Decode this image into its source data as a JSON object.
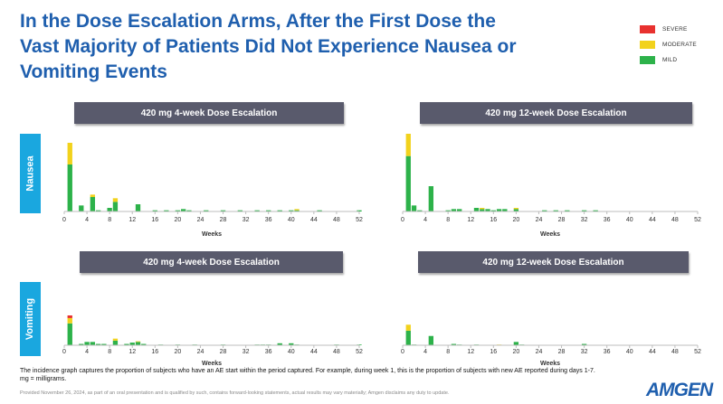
{
  "title": "In the Dose Escalation Arms, After the First Dose the Vast Majority of Patients Did Not Experience Nausea or Vomiting Events",
  "colors": {
    "severe": "#e8312f",
    "moderate": "#f2d21c",
    "mild": "#2db24a",
    "header": "#595a6c",
    "row_label": "#1aa7df",
    "title": "#1f5fae"
  },
  "legend": [
    {
      "key": "severe",
      "label": "SEVERE"
    },
    {
      "key": "moderate",
      "label": "MODERATE"
    },
    {
      "key": "mild",
      "label": "MILD"
    }
  ],
  "rows": [
    {
      "label": "Nausea"
    },
    {
      "label": "Vomiting"
    }
  ],
  "panels": [
    {
      "header": "420 mg 4-week Dose Escalation"
    },
    {
      "header": "420 mg 12-week Dose Escalation"
    },
    {
      "header": "420 mg 4-week Dose Escalation"
    },
    {
      "header": "420 mg 12-week Dose Escalation"
    }
  ],
  "chart_data": [
    {
      "type": "bar",
      "stacked": true,
      "title": "420 mg 4-week Dose Escalation",
      "row": "Nausea",
      "xlabel": "Weeks",
      "xlim": [
        0,
        52
      ],
      "x_ticks": [
        0,
        4,
        8,
        12,
        16,
        20,
        24,
        28,
        32,
        36,
        40,
        44,
        48,
        52
      ],
      "series": [
        {
          "name": "MILD",
          "points": [
            [
              1,
              0.39
            ],
            [
              3,
              0.05
            ],
            [
              5,
              0.12
            ],
            [
              6,
              0.01
            ],
            [
              8,
              0.03
            ],
            [
              9,
              0.08
            ],
            [
              13,
              0.06
            ],
            [
              16,
              0.01
            ],
            [
              18,
              0.01
            ],
            [
              20,
              0.01
            ],
            [
              21,
              0.02
            ],
            [
              22,
              0.01
            ],
            [
              25,
              0.01
            ],
            [
              28,
              0.01
            ],
            [
              31,
              0.01
            ],
            [
              34,
              0.01
            ],
            [
              36,
              0.01
            ],
            [
              38,
              0.01
            ],
            [
              40,
              0.01
            ],
            [
              41,
              0.01
            ],
            [
              45,
              0.01
            ],
            [
              52,
              0.01
            ]
          ]
        },
        {
          "name": "MODERATE",
          "points": [
            [
              1,
              0.18
            ],
            [
              5,
              0.02
            ],
            [
              9,
              0.03
            ],
            [
              41,
              0.01
            ]
          ]
        },
        {
          "name": "SEVERE",
          "points": []
        }
      ]
    },
    {
      "type": "bar",
      "stacked": true,
      "title": "420 mg 12-week Dose Escalation",
      "row": "Nausea",
      "xlabel": "Weeks",
      "xlim": [
        0,
        52
      ],
      "x_ticks": [
        0,
        4,
        8,
        12,
        16,
        20,
        24,
        28,
        32,
        36,
        40,
        44,
        48,
        52
      ],
      "series": [
        {
          "name": "MILD",
          "points": [
            [
              1,
              0.46
            ],
            [
              2,
              0.05
            ],
            [
              3,
              0.01
            ],
            [
              5,
              0.21
            ],
            [
              8,
              0.01
            ],
            [
              9,
              0.02
            ],
            [
              10,
              0.02
            ],
            [
              13,
              0.03
            ],
            [
              14,
              0.02
            ],
            [
              15,
              0.02
            ],
            [
              16,
              0.01
            ],
            [
              17,
              0.02
            ],
            [
              18,
              0.02
            ],
            [
              20,
              0.02
            ],
            [
              25,
              0.01
            ],
            [
              27,
              0.01
            ],
            [
              29,
              0.01
            ],
            [
              32,
              0.01
            ],
            [
              34,
              0.01
            ]
          ]
        },
        {
          "name": "MODERATE",
          "points": [
            [
              1,
              0.19
            ],
            [
              14,
              0.01
            ],
            [
              20,
              0.01
            ]
          ]
        },
        {
          "name": "SEVERE",
          "points": []
        }
      ]
    },
    {
      "type": "bar",
      "stacked": true,
      "title": "420 mg 4-week Dose Escalation",
      "row": "Vomiting",
      "xlabel": "Weeks",
      "xlim": [
        0,
        52
      ],
      "x_ticks": [
        0,
        4,
        8,
        12,
        16,
        20,
        24,
        28,
        32,
        36,
        40,
        44,
        48,
        52
      ],
      "series": [
        {
          "name": "MILD",
          "points": [
            [
              1,
              0.33
            ],
            [
              3,
              0.02
            ],
            [
              4,
              0.05
            ],
            [
              5,
              0.05
            ],
            [
              6,
              0.02
            ],
            [
              7,
              0.02
            ],
            [
              9,
              0.07
            ],
            [
              11,
              0.02
            ],
            [
              12,
              0.04
            ],
            [
              13,
              0.05
            ],
            [
              14,
              0.02
            ],
            [
              17,
              0.01
            ],
            [
              20,
              0.01
            ],
            [
              23,
              0.01
            ],
            [
              28,
              0.01
            ],
            [
              34,
              0.01
            ],
            [
              35,
              0.01
            ],
            [
              36,
              0.01
            ],
            [
              38,
              0.03
            ],
            [
              40,
              0.03
            ],
            [
              41,
              0.01
            ],
            [
              48,
              0.01
            ],
            [
              52,
              0.01
            ]
          ]
        },
        {
          "name": "MODERATE",
          "points": [
            [
              1,
              0.08
            ],
            [
              9,
              0.03
            ],
            [
              13,
              0.01
            ]
          ]
        },
        {
          "name": "SEVERE",
          "points": [
            [
              1,
              0.04
            ]
          ]
        }
      ]
    },
    {
      "type": "bar",
      "stacked": true,
      "title": "420 mg 12-week Dose Escalation",
      "row": "Vomiting",
      "xlabel": "Weeks",
      "xlim": [
        0,
        52
      ],
      "x_ticks": [
        0,
        4,
        8,
        12,
        16,
        20,
        24,
        28,
        32,
        36,
        40,
        44,
        48,
        52
      ],
      "series": [
        {
          "name": "MILD",
          "points": [
            [
              1,
              0.22
            ],
            [
              2,
              0.01
            ],
            [
              5,
              0.14
            ],
            [
              9,
              0.02
            ],
            [
              10,
              0.01
            ],
            [
              13,
              0.01
            ],
            [
              20,
              0.05
            ],
            [
              21,
              0.01
            ],
            [
              32,
              0.02
            ]
          ]
        },
        {
          "name": "MODERATE",
          "points": [
            [
              1,
              0.09
            ],
            [
              17,
              0.01
            ]
          ]
        },
        {
          "name": "SEVERE",
          "points": []
        }
      ]
    }
  ],
  "footnote": "The incidence graph captures the proportion of subjects who have an AE start within the period captured.  For example, during week 1, this is the proportion of subjects with new AE reported during days 1-7.\nmg = milligrams.",
  "footer": "Provided November 26, 2024, as part of an oral presentation and is qualified by such, contains forward-looking statements, actual results may vary materially; Amgen disclaims any duty to update.",
  "logo": "AMGEN"
}
